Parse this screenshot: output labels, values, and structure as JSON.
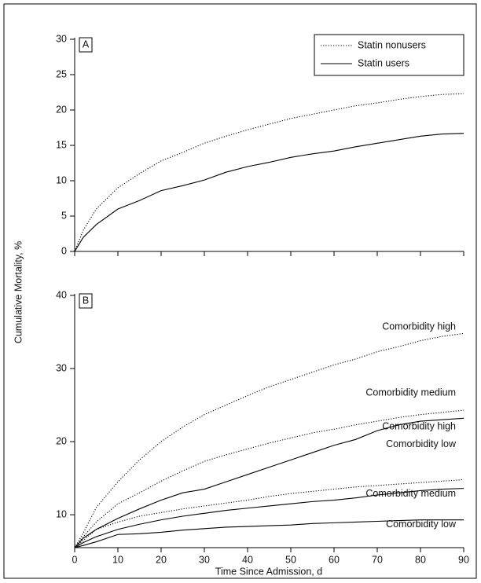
{
  "chart_data": [
    {
      "type": "line",
      "panel_label": "A",
      "ylabel": "Cumulative Mortality, %",
      "x": [
        0,
        2,
        5,
        10,
        15,
        20,
        25,
        30,
        35,
        40,
        45,
        50,
        55,
        60,
        65,
        70,
        75,
        80,
        85,
        90
      ],
      "xlim": [
        0,
        90
      ],
      "ylim": [
        0,
        30
      ],
      "yticks": [
        0,
        5,
        10,
        15,
        20,
        25,
        30
      ],
      "legend": "upper right",
      "series": [
        {
          "name": "Statin nonusers",
          "color": "#000000",
          "line_style": "dotted",
          "values": [
            0,
            3,
            6,
            9,
            11,
            12.8,
            14,
            15.3,
            16.3,
            17.2,
            18,
            18.8,
            19.4,
            20,
            20.6,
            21,
            21.5,
            21.9,
            22.2,
            22.3
          ]
        },
        {
          "name": "Statin users",
          "color": "#000000",
          "line_style": "solid",
          "values": [
            0,
            2,
            3.8,
            6,
            7.2,
            8.6,
            9.3,
            10.1,
            11.2,
            12,
            12.6,
            13.3,
            13.8,
            14.2,
            14.8,
            15.3,
            15.8,
            16.3,
            16.6,
            16.7
          ]
        }
      ]
    },
    {
      "type": "line",
      "panel_label": "B",
      "xlabel": "Time Since Admission, d",
      "x": [
        0,
        2,
        5,
        10,
        15,
        20,
        25,
        30,
        35,
        40,
        45,
        50,
        55,
        60,
        65,
        70,
        75,
        80,
        85,
        90
      ],
      "xlim": [
        0,
        90
      ],
      "xticks": [
        0,
        10,
        20,
        30,
        40,
        50,
        60,
        70,
        80,
        90
      ],
      "ylim": [
        5.5,
        40
      ],
      "yticks": [
        10,
        20,
        30,
        40
      ],
      "series_labels": "line end",
      "series": [
        {
          "name": "Comorbidity high",
          "color": "#000000",
          "line_style": "dotted",
          "values": [
            5.5,
            7.5,
            11,
            14.5,
            17.5,
            20,
            22,
            23.7,
            25,
            26.3,
            27.5,
            28.5,
            29.5,
            30.5,
            31.3,
            32.3,
            33,
            33.8,
            34.4,
            34.8
          ]
        },
        {
          "name": "Comorbidity medium",
          "color": "#000000",
          "line_style": "dotted",
          "values": [
            5.5,
            7,
            9,
            11.5,
            13,
            14.6,
            16,
            17.3,
            18.2,
            19,
            19.8,
            20.5,
            21.2,
            21.7,
            22.3,
            22.8,
            23.3,
            23.7,
            24,
            24.3
          ]
        },
        {
          "name": "Comorbidity high",
          "color": "#000000",
          "line_style": "solid",
          "values": [
            5.5,
            6.8,
            8,
            9.5,
            10.8,
            12,
            13,
            13.5,
            14.5,
            15.5,
            16.5,
            17.5,
            18.5,
            19.5,
            20.3,
            21.5,
            22.3,
            22.8,
            23,
            23.2
          ]
        },
        {
          "name": "Comorbidity low",
          "color": "#000000",
          "line_style": "dotted",
          "values": [
            5.5,
            6.5,
            8,
            9,
            9.8,
            10.3,
            10.8,
            11.2,
            11.6,
            12,
            12.5,
            12.9,
            13.2,
            13.5,
            13.8,
            14,
            14.2,
            14.4,
            14.6,
            14.8
          ]
        },
        {
          "name": "Comorbidity medium",
          "color": "#000000",
          "line_style": "solid",
          "values": [
            5.5,
            6.2,
            7,
            8,
            8.7,
            9.3,
            9.8,
            10.2,
            10.6,
            10.9,
            11.2,
            11.5,
            11.8,
            12,
            12.3,
            12.7,
            13,
            13.3,
            13.5,
            13.6
          ]
        },
        {
          "name": "Comorbidity low",
          "color": "#000000",
          "line_style": "solid",
          "values": [
            5.5,
            5.8,
            6.3,
            7.3,
            7.4,
            7.6,
            7.9,
            8.1,
            8.3,
            8.4,
            8.5,
            8.6,
            8.8,
            8.9,
            9,
            9.1,
            9.2,
            9.3,
            9.3,
            9.3
          ]
        }
      ]
    }
  ]
}
